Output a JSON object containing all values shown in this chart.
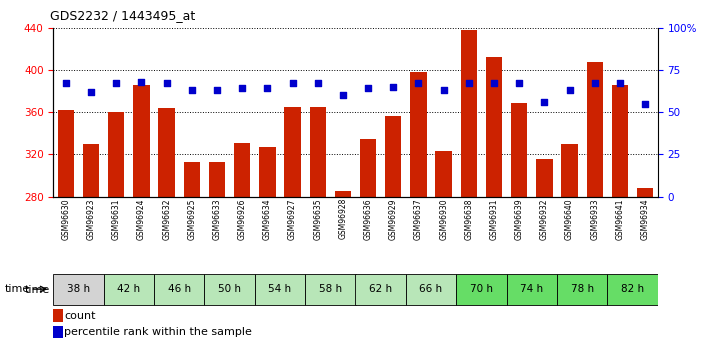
{
  "title": "GDS2232 / 1443495_at",
  "samples": [
    "GSM96630",
    "GSM96923",
    "GSM96631",
    "GSM96924",
    "GSM96632",
    "GSM96925",
    "GSM96633",
    "GSM96926",
    "GSM96634",
    "GSM96927",
    "GSM96635",
    "GSM96928",
    "GSM96636",
    "GSM96929",
    "GSM96637",
    "GSM96930",
    "GSM96638",
    "GSM96931",
    "GSM96639",
    "GSM96932",
    "GSM96640",
    "GSM96933",
    "GSM96641",
    "GSM96934"
  ],
  "time_groups": [
    {
      "label": "38 h",
      "indices": [
        0,
        1
      ],
      "color": "#d3d3d3"
    },
    {
      "label": "42 h",
      "indices": [
        2,
        3
      ],
      "color": "#b8e6b8"
    },
    {
      "label": "46 h",
      "indices": [
        4,
        5
      ],
      "color": "#b8e6b8"
    },
    {
      "label": "50 h",
      "indices": [
        6,
        7
      ],
      "color": "#b8e6b8"
    },
    {
      "label": "54 h",
      "indices": [
        8,
        9
      ],
      "color": "#b8e6b8"
    },
    {
      "label": "58 h",
      "indices": [
        10,
        11
      ],
      "color": "#b8e6b8"
    },
    {
      "label": "62 h",
      "indices": [
        12,
        13
      ],
      "color": "#b8e6b8"
    },
    {
      "label": "66 h",
      "indices": [
        14,
        15
      ],
      "color": "#b8e6b8"
    },
    {
      "label": "70 h",
      "indices": [
        16,
        17
      ],
      "color": "#66dd66"
    },
    {
      "label": "74 h",
      "indices": [
        18,
        19
      ],
      "color": "#66dd66"
    },
    {
      "label": "78 h",
      "indices": [
        20,
        21
      ],
      "color": "#66dd66"
    },
    {
      "label": "82 h",
      "indices": [
        22,
        23
      ],
      "color": "#66dd66"
    }
  ],
  "bar_values": [
    362,
    330,
    360,
    386,
    364,
    313,
    313,
    331,
    327,
    365,
    365,
    285,
    335,
    356,
    398,
    323,
    438,
    412,
    369,
    316,
    330,
    407,
    386,
    288
  ],
  "percentile_values": [
    67,
    62,
    67,
    68,
    67,
    63,
    63,
    64,
    64,
    67,
    67,
    60,
    64,
    65,
    67,
    63,
    67,
    67,
    67,
    56,
    63,
    67,
    67,
    55
  ],
  "ylim_left": [
    280,
    440
  ],
  "ylim_right": [
    0,
    100
  ],
  "yticks_left": [
    280,
    320,
    360,
    400,
    440
  ],
  "yticks_right": [
    0,
    25,
    50,
    75,
    100
  ],
  "bar_color": "#cc2200",
  "dot_color": "#0000cc",
  "bg_color": "#ffffff",
  "bar_width": 0.65,
  "legend_count_label": "count",
  "legend_pct_label": "percentile rank within the sample"
}
